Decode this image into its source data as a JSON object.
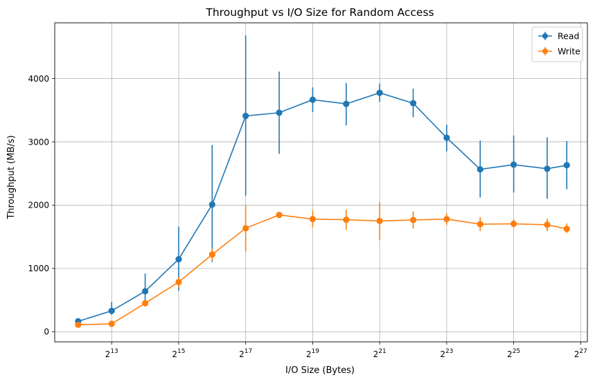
{
  "chart_data": {
    "type": "line",
    "title": "Throughput vs I/O Size for Random Access",
    "xlabel": "I/O Size (Bytes)",
    "ylabel": "Throughput (MB/s)",
    "x_scale": "log2",
    "x": [
      4096,
      8192,
      16384,
      32768,
      65536,
      131072,
      262144,
      524288,
      1048576,
      2097152,
      4194304,
      8388608,
      16777216,
      33554432,
      67108864,
      100663296
    ],
    "xlim_log2": [
      11.3,
      27.2
    ],
    "ylim": [
      -160,
      4880
    ],
    "x_ticks": [
      {
        "exp": 13,
        "base": "2",
        "sup": "13"
      },
      {
        "exp": 15,
        "base": "2",
        "sup": "15"
      },
      {
        "exp": 17,
        "base": "2",
        "sup": "17"
      },
      {
        "exp": 19,
        "base": "2",
        "sup": "19"
      },
      {
        "exp": 21,
        "base": "2",
        "sup": "21"
      },
      {
        "exp": 23,
        "base": "2",
        "sup": "23"
      },
      {
        "exp": 25,
        "base": "2",
        "sup": "25"
      },
      {
        "exp": 27,
        "base": "2",
        "sup": "27"
      }
    ],
    "y_ticks": [
      0,
      1000,
      2000,
      3000,
      4000
    ],
    "y_tick_labels": [
      "0",
      "1000",
      "2000",
      "3000",
      "4000"
    ],
    "grid": true,
    "legend_position": "top-right",
    "series": [
      {
        "name": "Read",
        "color": "#1f77b4",
        "y": [
          165,
          330,
          640,
          1145,
          2010,
          3410,
          3460,
          3665,
          3600,
          3775,
          3610,
          3065,
          2565,
          2640,
          2575,
          2630
        ],
        "yerr": [
          [
            125,
            205
          ],
          [
            270,
            470
          ],
          [
            420,
            920
          ],
          [
            650,
            1660
          ],
          [
            1100,
            2950
          ],
          [
            2150,
            4680
          ],
          [
            2810,
            4110
          ],
          [
            3470,
            3860
          ],
          [
            3260,
            3930
          ],
          [
            3630,
            3920
          ],
          [
            3390,
            3840
          ],
          [
            2850,
            3270
          ],
          [
            2120,
            3020
          ],
          [
            2200,
            3100
          ],
          [
            2100,
            3070
          ],
          [
            2250,
            3010
          ]
        ]
      },
      {
        "name": "Write",
        "color": "#ff7f0e",
        "y": [
          110,
          125,
          450,
          785,
          1220,
          1635,
          1845,
          1780,
          1770,
          1750,
          1765,
          1780,
          1700,
          1705,
          1690,
          1625
        ],
        "yerr": [
          [
            80,
            135
          ],
          [
            100,
            155
          ],
          [
            400,
            500
          ],
          [
            700,
            860
          ],
          [
            1120,
            1310
          ],
          [
            1270,
            1990
          ],
          [
            1800,
            1890
          ],
          [
            1650,
            1910
          ],
          [
            1610,
            1930
          ],
          [
            1450,
            2050
          ],
          [
            1630,
            1900
          ],
          [
            1690,
            1870
          ],
          [
            1590,
            1810
          ],
          [
            1640,
            1770
          ],
          [
            1590,
            1790
          ],
          [
            1560,
            1710
          ]
        ]
      }
    ]
  }
}
